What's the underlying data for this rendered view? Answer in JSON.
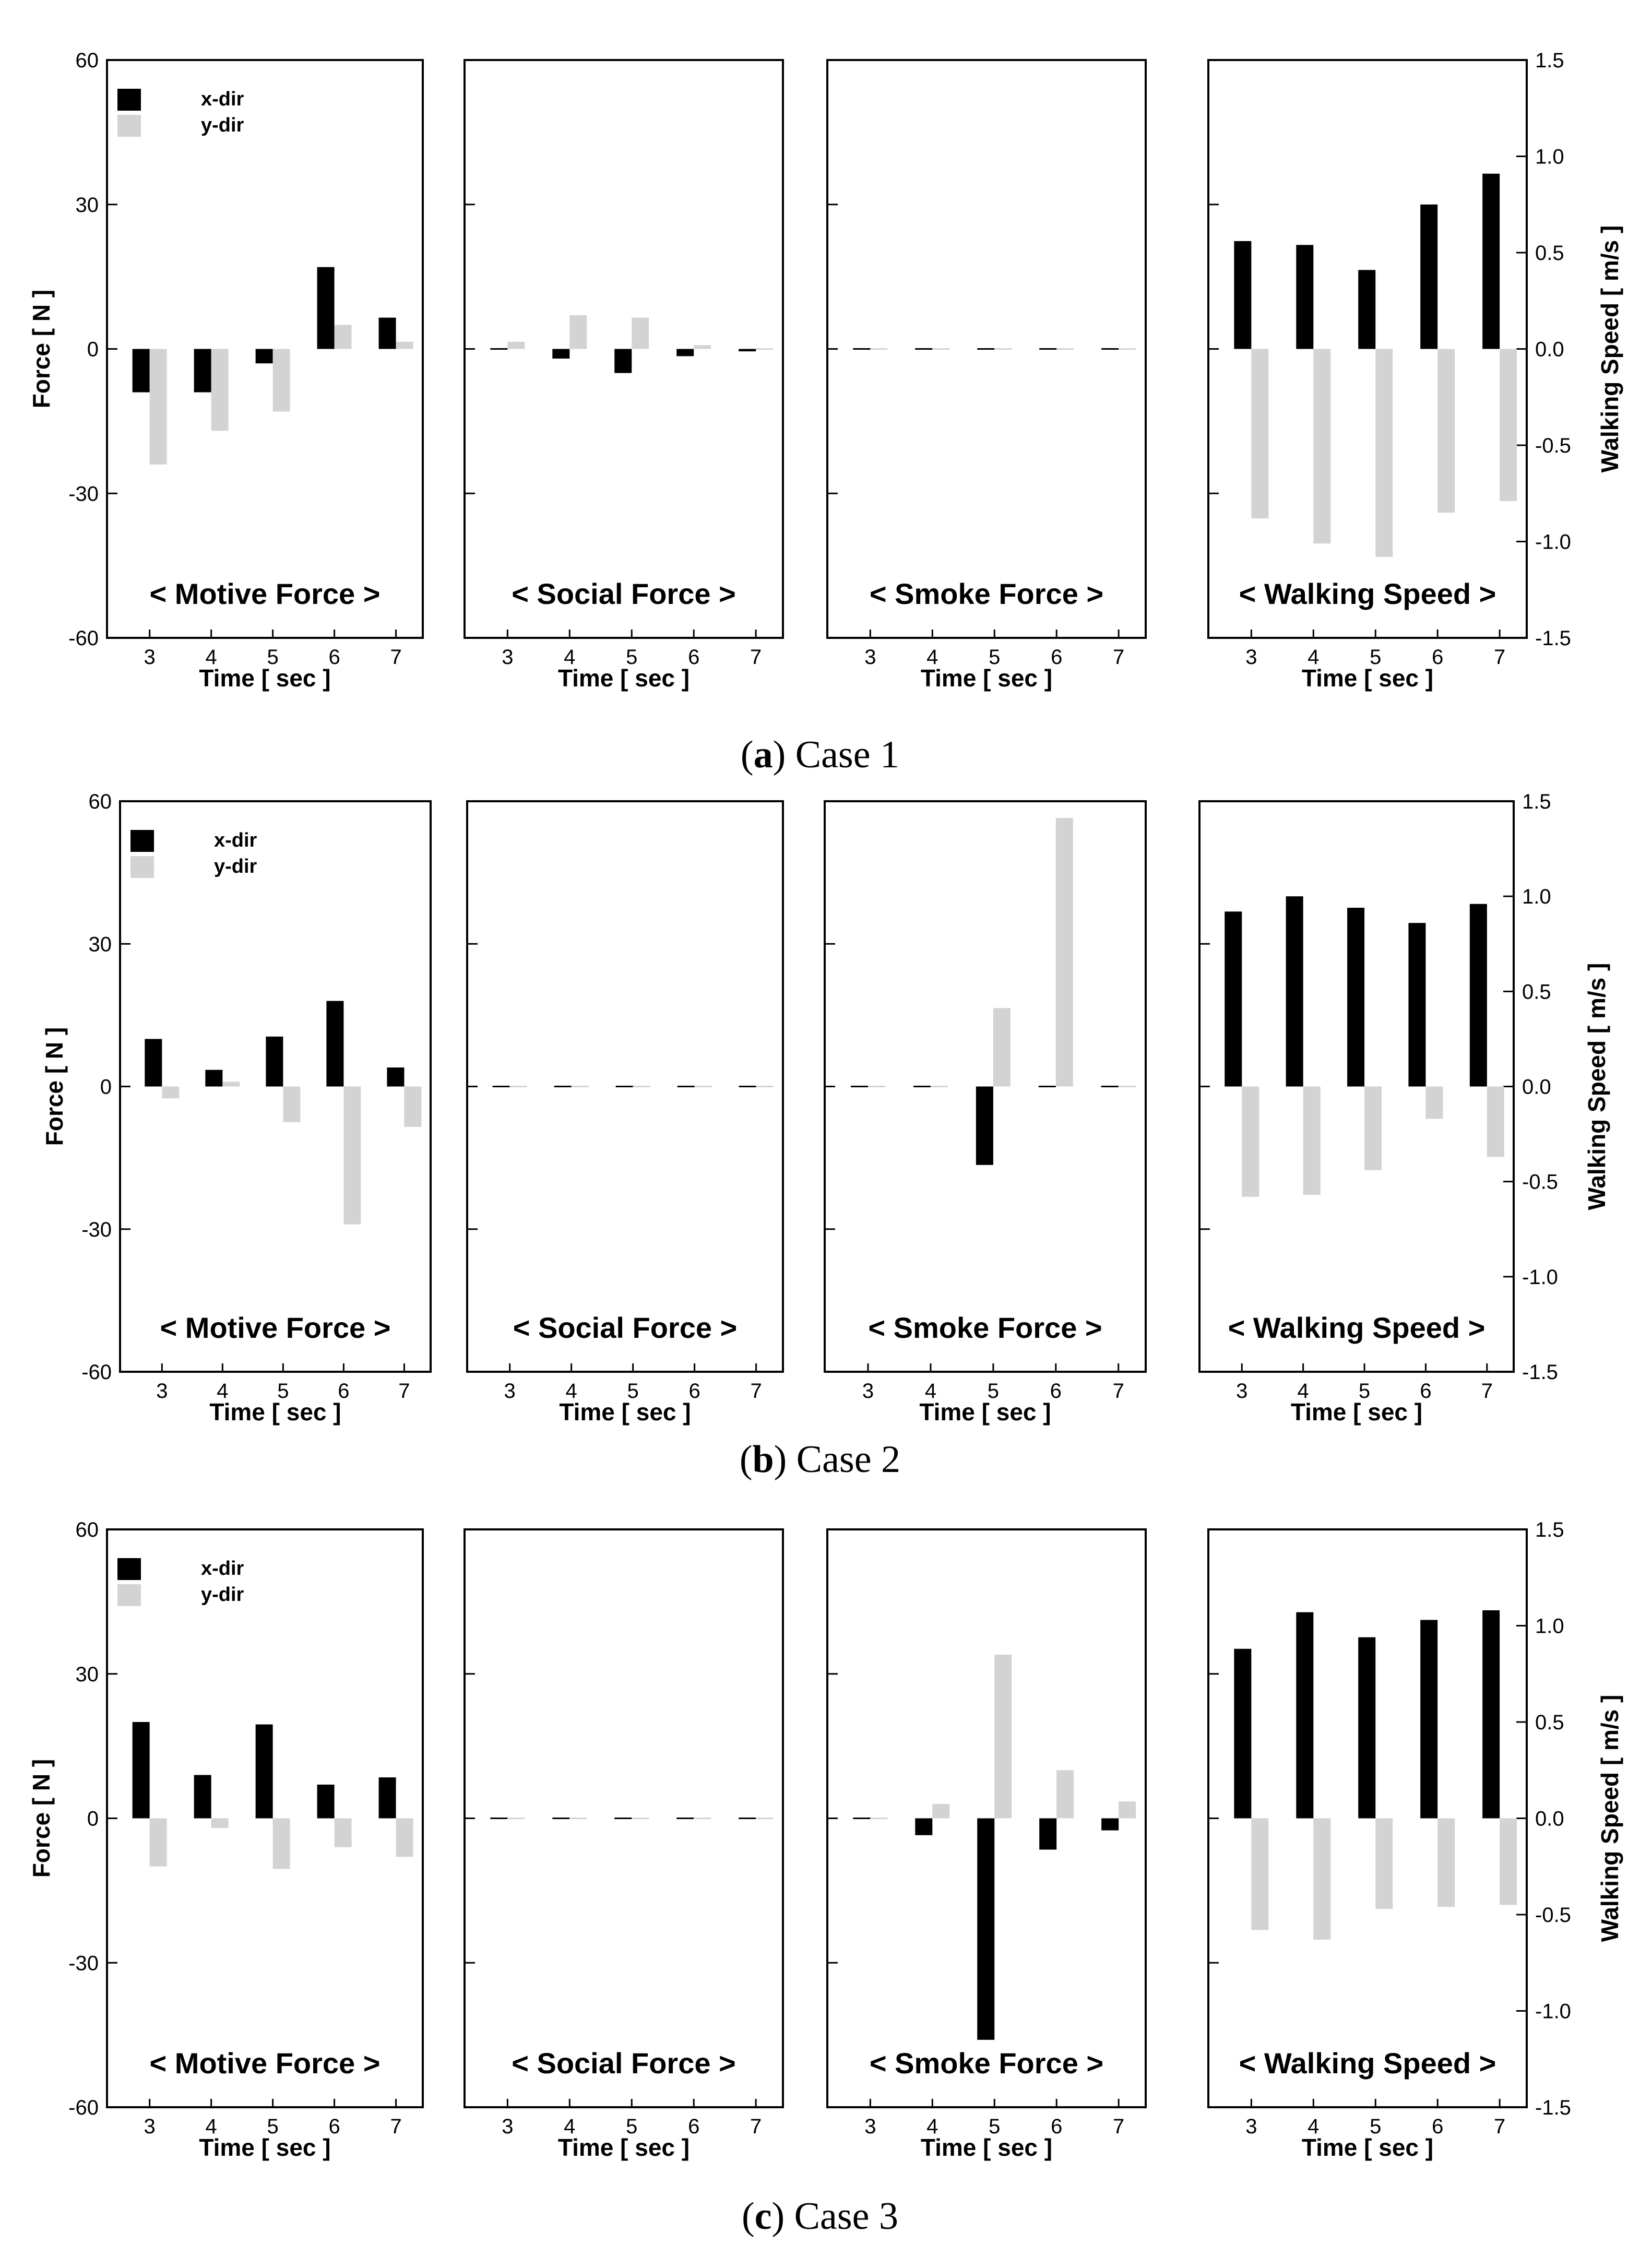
{
  "colors": {
    "x_dir": "#000000",
    "y_dir": "#d3d3d3"
  },
  "legend": {
    "x_dir": "x-dir",
    "y_dir": "y-dir"
  },
  "chart_data": [
    {
      "type": "bar",
      "caption_letter": "a",
      "caption_text": "Case 1",
      "categories": [
        "3",
        "4",
        "5",
        "6",
        "7"
      ],
      "xlabel": "Time [ sec ]",
      "left_axis": {
        "label": "Force [ N ]",
        "ylim": [
          -60,
          60
        ],
        "ticks": [
          "60",
          "30",
          "0",
          "-30",
          "-60"
        ]
      },
      "right_axis": {
        "label": "Walking Speed [ m/s ]",
        "ylim": [
          -1.5,
          1.5
        ],
        "ticks": [
          "1.5",
          "1.0",
          "0.5",
          "0.0",
          "-0.5",
          "-1.0",
          "-1.5"
        ]
      },
      "panels": [
        {
          "title": "< Motive Force >",
          "series": [
            {
              "name": "x-dir",
              "values": [
                -9,
                -9,
                -3,
                17,
                6.5
              ]
            },
            {
              "name": "y-dir",
              "values": [
                -24,
                -17,
                -13,
                5,
                1.5
              ]
            }
          ]
        },
        {
          "title": "< Social Force >",
          "series": [
            {
              "name": "x-dir",
              "values": [
                0,
                -2,
                -5,
                -1.5,
                -0.5
              ]
            },
            {
              "name": "y-dir",
              "values": [
                1.5,
                7,
                6.5,
                0.8,
                0
              ]
            }
          ]
        },
        {
          "title": "< Smoke Force >",
          "series": [
            {
              "name": "x-dir",
              "values": [
                0,
                0,
                0,
                0,
                0
              ]
            },
            {
              "name": "y-dir",
              "values": [
                0,
                0,
                0,
                0,
                0
              ]
            }
          ]
        },
        {
          "title": "< Walking Speed >",
          "series": [
            {
              "name": "x-dir",
              "values": [
                0.56,
                0.54,
                0.41,
                0.75,
                0.91
              ]
            },
            {
              "name": "y-dir",
              "values": [
                -0.88,
                -1.01,
                -1.08,
                -0.85,
                -0.79
              ]
            }
          ]
        }
      ]
    },
    {
      "type": "bar",
      "caption_letter": "b",
      "caption_text": "Case 2",
      "categories": [
        "3",
        "4",
        "5",
        "6",
        "7"
      ],
      "xlabel": "Time [ sec ]",
      "left_axis": {
        "label": "Force [ N ]",
        "ylim": [
          -60,
          60
        ],
        "ticks": [
          "60",
          "30",
          "0",
          "-30",
          "-60"
        ]
      },
      "right_axis": {
        "label": "Walking Speed [ m/s ]",
        "ylim": [
          -1.5,
          1.5
        ],
        "ticks": [
          "1.5",
          "1.0",
          "0.5",
          "0.0",
          "-0.5",
          "-1.0",
          "-1.5"
        ]
      },
      "panels": [
        {
          "title": "< Motive Force >",
          "series": [
            {
              "name": "x-dir",
              "values": [
                10,
                3.5,
                10.5,
                18,
                4
              ]
            },
            {
              "name": "y-dir",
              "values": [
                -2.5,
                1,
                -7.5,
                -29,
                -8.5
              ]
            }
          ]
        },
        {
          "title": "< Social Force >",
          "series": [
            {
              "name": "x-dir",
              "values": [
                0,
                0,
                0,
                0,
                0
              ]
            },
            {
              "name": "y-dir",
              "values": [
                0,
                0,
                0,
                0,
                0
              ]
            }
          ]
        },
        {
          "title": "< Smoke Force >",
          "series": [
            {
              "name": "x-dir",
              "values": [
                0,
                0,
                -16.5,
                0,
                0
              ]
            },
            {
              "name": "y-dir",
              "values": [
                0,
                0,
                16.5,
                56.5,
                0
              ]
            }
          ]
        },
        {
          "title": "< Walking Speed >",
          "series": [
            {
              "name": "x-dir",
              "values": [
                0.92,
                1.0,
                0.94,
                0.86,
                0.96
              ]
            },
            {
              "name": "y-dir",
              "values": [
                -0.58,
                -0.57,
                -0.44,
                -0.17,
                -0.37
              ]
            }
          ]
        }
      ]
    },
    {
      "type": "bar",
      "caption_letter": "c",
      "caption_text": "Case 3",
      "categories": [
        "3",
        "4",
        "5",
        "6",
        "7"
      ],
      "xlabel": "Time [ sec ]",
      "left_axis": {
        "label": "Force [ N ]",
        "ylim": [
          -60,
          60
        ],
        "ticks": [
          "60",
          "30",
          "0",
          "-30",
          "-60"
        ]
      },
      "right_axis": {
        "label": "Walking Speed [ m/s ]",
        "ylim": [
          -1.5,
          1.5
        ],
        "ticks": [
          "1.5",
          "1.0",
          "0.5",
          "0.0",
          "-0.5",
          "-1.0",
          "-1.5"
        ]
      },
      "panels": [
        {
          "title": "< Motive Force >",
          "series": [
            {
              "name": "x-dir",
              "values": [
                20,
                9,
                19.5,
                7,
                8.5
              ]
            },
            {
              "name": "y-dir",
              "values": [
                -10,
                -2,
                -10.5,
                -6,
                -8
              ]
            }
          ]
        },
        {
          "title": "< Social Force >",
          "series": [
            {
              "name": "x-dir",
              "values": [
                0,
                0,
                0,
                0,
                0
              ]
            },
            {
              "name": "y-dir",
              "values": [
                0,
                0,
                0,
                0,
                0
              ]
            }
          ]
        },
        {
          "title": "< Smoke Force >",
          "series": [
            {
              "name": "x-dir",
              "values": [
                0,
                -3.5,
                -46,
                -6.5,
                -2.5
              ]
            },
            {
              "name": "y-dir",
              "values": [
                0,
                3,
                34,
                10,
                3.5
              ]
            }
          ]
        },
        {
          "title": "< Walking Speed >",
          "series": [
            {
              "name": "x-dir",
              "values": [
                0.88,
                1.07,
                0.94,
                1.03,
                1.08
              ]
            },
            {
              "name": "y-dir",
              "values": [
                -0.58,
                -0.63,
                -0.47,
                -0.46,
                -0.45
              ]
            }
          ]
        }
      ]
    }
  ]
}
